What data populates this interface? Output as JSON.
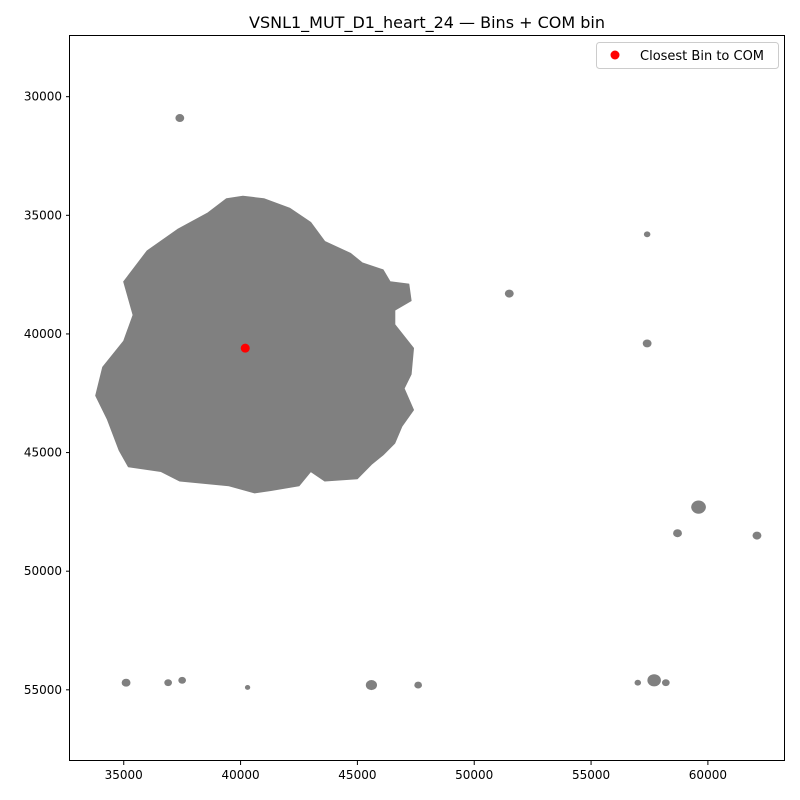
{
  "chart_data": {
    "type": "scatter",
    "title": "VSNL1_MUT_D1_heart_24 — Bins + COM bin",
    "xlabel": "",
    "ylabel": "",
    "xlim": [
      32700,
      63300
    ],
    "ylim": [
      58000,
      27400
    ],
    "y_inverted": true,
    "grid": false,
    "x_ticks": [
      35000,
      40000,
      45000,
      50000,
      55000,
      60000
    ],
    "x_tick_labels": [
      "35000",
      "40000",
      "45000",
      "50000",
      "55000",
      "60000"
    ],
    "y_ticks": [
      30000,
      35000,
      40000,
      45000,
      50000,
      55000
    ],
    "y_tick_labels": [
      "30000",
      "35000",
      "40000",
      "45000",
      "50000",
      "55000"
    ],
    "legend": {
      "position": "top-right",
      "entries": [
        "Closest Bin to COM"
      ]
    },
    "colors": {
      "bins": "#808080",
      "com": "#ff0000"
    },
    "series": [
      {
        "role": "bins",
        "main_region_outline": [
          [
            40100,
            34200
          ],
          [
            41000,
            34300
          ],
          [
            42100,
            34700
          ],
          [
            43000,
            35300
          ],
          [
            43600,
            36100
          ],
          [
            44700,
            36600
          ],
          [
            45200,
            37000
          ],
          [
            46100,
            37300
          ],
          [
            46400,
            37800
          ],
          [
            47200,
            37900
          ],
          [
            47300,
            38600
          ],
          [
            46600,
            39000
          ],
          [
            46600,
            39600
          ],
          [
            47400,
            40600
          ],
          [
            47300,
            41700
          ],
          [
            47000,
            42300
          ],
          [
            47400,
            43200
          ],
          [
            46900,
            43900
          ],
          [
            46600,
            44600
          ],
          [
            46100,
            45100
          ],
          [
            45600,
            45500
          ],
          [
            45000,
            46100
          ],
          [
            43600,
            46200
          ],
          [
            43000,
            45800
          ],
          [
            42500,
            46400
          ],
          [
            41300,
            46600
          ],
          [
            40600,
            46700
          ],
          [
            39500,
            46400
          ],
          [
            37400,
            46200
          ],
          [
            36600,
            45800
          ],
          [
            35200,
            45600
          ],
          [
            34800,
            44900
          ],
          [
            34300,
            43600
          ],
          [
            33800,
            42600
          ],
          [
            34100,
            41400
          ],
          [
            35000,
            40300
          ],
          [
            35400,
            39200
          ],
          [
            35000,
            37800
          ],
          [
            36000,
            36500
          ],
          [
            37300,
            35600
          ],
          [
            38600,
            34900
          ],
          [
            39400,
            34300
          ]
        ],
        "small_clusters": [
          {
            "x": 37400,
            "y": 30900,
            "size": 0.25
          },
          {
            "x": 57400,
            "y": 35800,
            "size": 0.15
          },
          {
            "x": 51500,
            "y": 38300,
            "size": 0.25
          },
          {
            "x": 57400,
            "y": 40400,
            "size": 0.25
          },
          {
            "x": 59600,
            "y": 47300,
            "size": 0.5
          },
          {
            "x": 58700,
            "y": 48400,
            "size": 0.25
          },
          {
            "x": 62100,
            "y": 48500,
            "size": 0.25
          },
          {
            "x": 35100,
            "y": 54700,
            "size": 0.25
          },
          {
            "x": 36900,
            "y": 54700,
            "size": 0.2
          },
          {
            "x": 37500,
            "y": 54600,
            "size": 0.2
          },
          {
            "x": 40300,
            "y": 54900,
            "size": 0.1
          },
          {
            "x": 45600,
            "y": 54800,
            "size": 0.35
          },
          {
            "x": 47600,
            "y": 54800,
            "size": 0.2
          },
          {
            "x": 57000,
            "y": 54700,
            "size": 0.15
          },
          {
            "x": 57700,
            "y": 54600,
            "size": 0.45
          },
          {
            "x": 58200,
            "y": 54700,
            "size": 0.2
          }
        ]
      },
      {
        "name": "Closest Bin to COM",
        "role": "com",
        "x": [
          40200
        ],
        "y": [
          40600
        ]
      }
    ]
  }
}
